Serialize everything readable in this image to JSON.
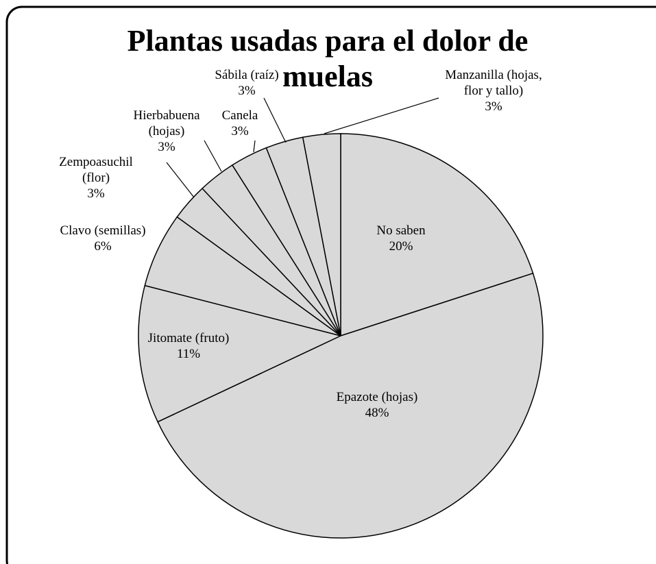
{
  "chart_data": {
    "type": "pie",
    "title": "Plantas usadas para el dolor de muelas",
    "categories": [
      "No saben",
      "Epazote (hojas)",
      "Jitomate (fruto)",
      "Clavo (semillas)",
      "Zempoasuchil (flor)",
      "Hierbabuena (hojas)",
      "Canela",
      "Sábila (raíz)",
      "Manzanilla (hojas, flor y tallo)"
    ],
    "values": [
      20,
      48,
      11,
      6,
      3,
      3,
      3,
      3,
      3
    ],
    "value_labels": [
      "20%",
      "48%",
      "11%",
      "6%",
      "3%",
      "3%",
      "3%",
      "3%",
      "3%"
    ],
    "color": "#d9d9d9"
  }
}
